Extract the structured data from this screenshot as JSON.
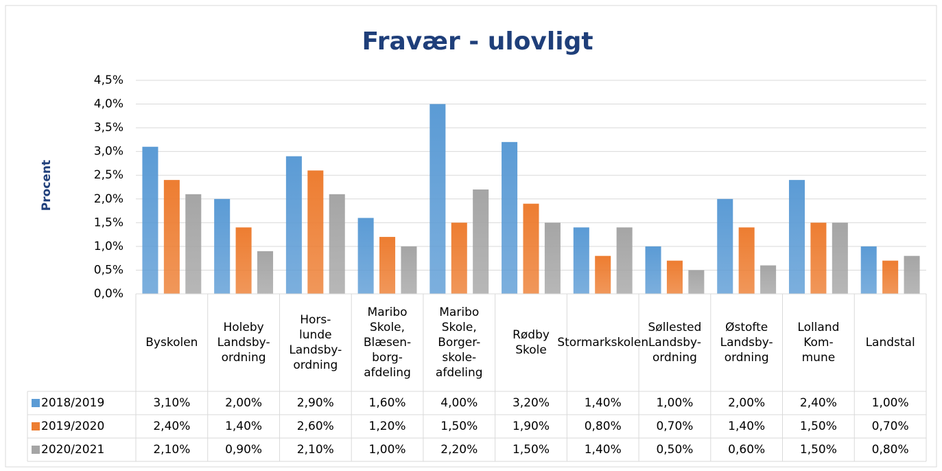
{
  "chart_data": {
    "type": "bar",
    "title": "Fravær - ulovligt",
    "y_label": "Procent",
    "categories": [
      [
        "Byskolen"
      ],
      [
        "Holeby",
        "Landsby-",
        "ordning"
      ],
      [
        "Hors-",
        "lunde",
        "Landsby-",
        "ordning"
      ],
      [
        "Maribo",
        "Skole,",
        "Blæsen-",
        "borg-",
        "afdeling"
      ],
      [
        "Maribo",
        "Skole,",
        "Borger-",
        "skole-",
        "afdeling"
      ],
      [
        "Rødby",
        "Skole"
      ],
      [
        "Stormarkskolen"
      ],
      [
        "Søllested",
        "Landsby-",
        "ordning"
      ],
      [
        "Østofte",
        "Landsby-",
        "ordning"
      ],
      [
        "Lolland",
        "Kom-",
        "mune"
      ],
      [
        "Landstal"
      ]
    ],
    "series": [
      {
        "name": "2018/2019",
        "color": "#5b9bd5",
        "values": [
          3.1,
          2.0,
          2.9,
          1.6,
          4.0,
          3.2,
          1.4,
          1.0,
          2.0,
          2.4,
          1.0
        ],
        "value_labels": [
          "3,10%",
          "2,00%",
          "2,90%",
          "1,60%",
          "4,00%",
          "3,20%",
          "1,40%",
          "1,00%",
          "2,00%",
          "2,40%",
          "1,00%"
        ]
      },
      {
        "name": "2019/2020",
        "color": "#ed7d31",
        "values": [
          2.4,
          1.4,
          2.6,
          1.2,
          1.5,
          1.9,
          0.8,
          0.7,
          1.4,
          1.5,
          0.7
        ],
        "value_labels": [
          "2,40%",
          "1,40%",
          "2,60%",
          "1,20%",
          "1,50%",
          "1,90%",
          "0,80%",
          "0,70%",
          "1,40%",
          "1,50%",
          "0,70%"
        ]
      },
      {
        "name": "2020/2021",
        "color": "#a5a5a5",
        "values": [
          2.1,
          0.9,
          2.1,
          1.0,
          2.2,
          1.5,
          1.4,
          0.5,
          0.6,
          1.5,
          0.8
        ],
        "value_labels": [
          "2,10%",
          "0,90%",
          "2,10%",
          "1,00%",
          "2,20%",
          "1,50%",
          "1,40%",
          "0,50%",
          "0,60%",
          "1,50%",
          "0,80%"
        ]
      }
    ],
    "ylim": [
      0,
      4.5
    ],
    "yticks": [
      {
        "value": 0,
        "label": "0,0%"
      },
      {
        "value": 0.5,
        "label": "0,5%"
      },
      {
        "value": 1,
        "label": "1,0%"
      },
      {
        "value": 1.5,
        "label": "1,5%"
      },
      {
        "value": 2,
        "label": "2,0%"
      },
      {
        "value": 2.5,
        "label": "2,5%"
      },
      {
        "value": 3,
        "label": "3,0%"
      },
      {
        "value": 3.5,
        "label": "3,5%"
      },
      {
        "value": 4,
        "label": "4,0%"
      },
      {
        "value": 4.5,
        "label": "4,5%"
      }
    ],
    "grid": true
  }
}
